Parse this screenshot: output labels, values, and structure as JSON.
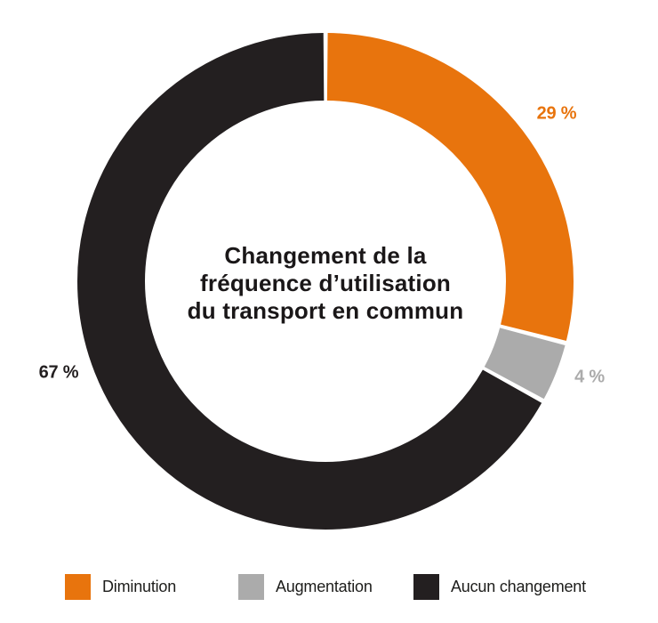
{
  "chart_data": {
    "type": "pie",
    "variant": "donut",
    "title": "Changement de la fréquence d’utilisation du transport en commun",
    "title_lines": [
      "Changement de la",
      "fréquence d’utilisation",
      "du transport en commun"
    ],
    "units": "%",
    "start_angle_deg": 0,
    "direction": "clockwise",
    "legend_position": "bottom",
    "segments": [
      {
        "name": "Diminution",
        "value": 29,
        "label": "29 %",
        "color": "#E8740D"
      },
      {
        "name": "Augmentation",
        "value": 4,
        "label": "4 %",
        "color": "#ABABAB"
      },
      {
        "name": "Aucun changement",
        "value": 67,
        "label": "67 %",
        "color": "#231F20"
      }
    ],
    "separator_color": "#FFFFFF"
  }
}
